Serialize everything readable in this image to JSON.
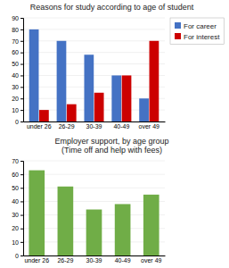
{
  "chart_data": [
    {
      "type": "bar",
      "title": "Reasons for study according to age of student",
      "categories": [
        "under 26",
        "26-29",
        "30-39",
        "40-49",
        "over 49"
      ],
      "series": [
        {
          "name": "For career",
          "color": "#4472C4",
          "values": [
            80,
            70,
            58,
            40,
            20
          ]
        },
        {
          "name": "For interest",
          "color": "#CC0000",
          "values": [
            10,
            15,
            25,
            40,
            70
          ]
        }
      ],
      "ylim": [
        0,
        90
      ],
      "yticks": [
        0,
        10,
        20,
        30,
        40,
        50,
        60,
        70,
        80,
        90
      ],
      "grid": true,
      "legend": "right"
    },
    {
      "type": "bar",
      "title": "Employer support, by age group\n(Time off and help with fees)",
      "categories": [
        "under 26",
        "26-29",
        "30-39",
        "40-49",
        "over 49"
      ],
      "values": [
        63,
        51,
        34,
        38,
        45
      ],
      "color": "#70AD47",
      "ylim": [
        0,
        70
      ],
      "yticks": [
        0,
        10,
        20,
        30,
        40,
        50,
        60,
        70
      ],
      "grid": true
    }
  ]
}
